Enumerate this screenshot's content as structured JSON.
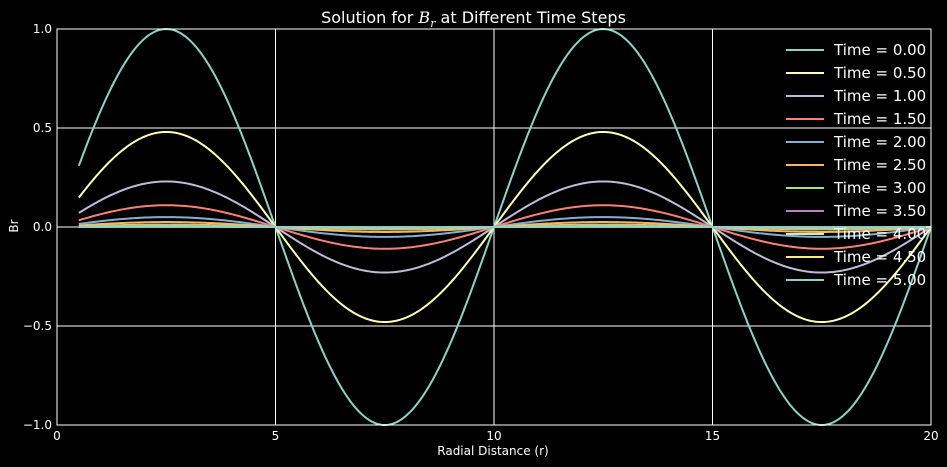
{
  "chart_data": {
    "type": "line",
    "title_prefix": "Solution for ",
    "title_math": "B",
    "title_math_sub": "r",
    "title_suffix": " at Different Time Steps",
    "xlabel": "Radial Distance (r)",
    "ylabel": "Br",
    "xlim": [
      0,
      20
    ],
    "ylim": [
      -1.0,
      1.0
    ],
    "xticks": [
      0,
      5,
      10,
      15,
      20
    ],
    "xtick_labels": [
      "0",
      "5",
      "10",
      "15",
      "20"
    ],
    "yticks": [
      -1.0,
      -0.5,
      0.0,
      0.5,
      1.0
    ],
    "ytick_labels": [
      "−1.0",
      "−0.5",
      "0.0",
      "0.5",
      "1.0"
    ],
    "grid": true,
    "legend_position": "top-right",
    "x_range": [
      0.5,
      20
    ],
    "function": "Br = amplitude * sin(pi * r / 5)",
    "series": [
      {
        "name": "Time = 0.00",
        "amplitude": 1.0,
        "color": "#8dd3c7"
      },
      {
        "name": "Time = 0.50",
        "amplitude": 0.48,
        "color": "#feffb3"
      },
      {
        "name": "Time = 1.00",
        "amplitude": 0.23,
        "color": "#bfbbd9"
      },
      {
        "name": "Time = 1.50",
        "amplitude": 0.11,
        "color": "#fa8174"
      },
      {
        "name": "Time = 2.00",
        "amplitude": 0.05,
        "color": "#81b1d2"
      },
      {
        "name": "Time = 2.50",
        "amplitude": 0.025,
        "color": "#fdb462"
      },
      {
        "name": "Time = 3.00",
        "amplitude": 0.012,
        "color": "#b3de69"
      },
      {
        "name": "Time = 3.50",
        "amplitude": 0.006,
        "color": "#bc82bd"
      },
      {
        "name": "Time = 4.00",
        "amplitude": 0.003,
        "color": "#ccebc4"
      },
      {
        "name": "Time = 4.50",
        "amplitude": 0.0015,
        "color": "#ffed6f"
      },
      {
        "name": "Time = 5.00",
        "amplitude": 0.0007,
        "color": "#8dd3c7"
      }
    ]
  }
}
